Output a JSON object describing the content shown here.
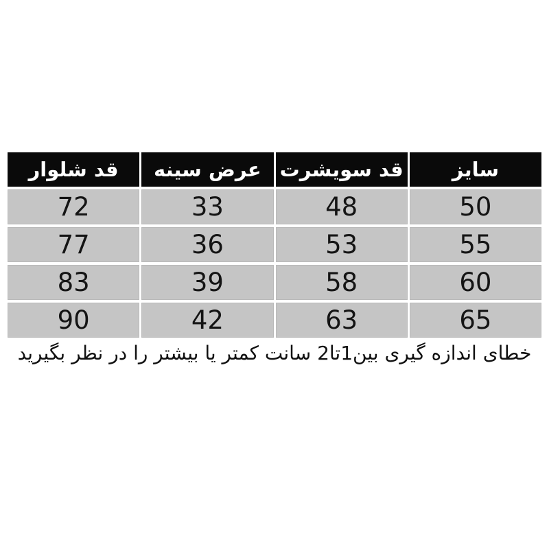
{
  "chart_data": {
    "type": "table",
    "title": "",
    "direction": "rtl",
    "columns": [
      "سایز",
      "قد سویشرت",
      "عرض سینه",
      "قد شلوار"
    ],
    "rows": [
      [
        "50",
        "48",
        "33",
        "72"
      ],
      [
        "55",
        "53",
        "36",
        "77"
      ],
      [
        "60",
        "58",
        "39",
        "83"
      ],
      [
        "65",
        "63",
        "42",
        "90"
      ]
    ],
    "note": "خطای اندازه گیری بین1تا2 سانت کمتر یا بیشتر را در نظر بگیرید"
  },
  "colors": {
    "page_bg": "#ffffff",
    "header_bg": "#0a0a0a",
    "header_text": "#ffffff",
    "cell_bg": "#c5c5c5",
    "cell_text": "#141414"
  }
}
